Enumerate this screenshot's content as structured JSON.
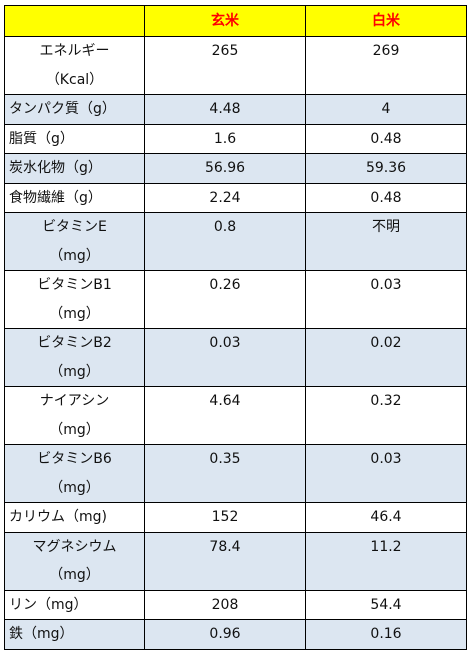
{
  "table": {
    "header": [
      "玄米",
      "白米"
    ],
    "rows": [
      [
        "エネルギー\n（Kcal）",
        "265",
        "269"
      ],
      [
        "タンパク質（g）",
        "4.48",
        "4"
      ],
      [
        "脂質（g）",
        "1.6",
        "0.48"
      ],
      [
        "炭水化物（g）",
        "56.96",
        "59.36"
      ],
      [
        "食物繊維（g）",
        "2.24",
        "0.48"
      ],
      [
        "ビタミンE\n（mg）",
        "0.8",
        "不明"
      ],
      [
        "ビタミンB1\n（mg）",
        "0.26",
        "0.03"
      ],
      [
        "ビタミンB2\n（mg）",
        "0.03",
        "0.02"
      ],
      [
        "ナイアシン\n（mg）",
        "4.64",
        "0.32"
      ],
      [
        "ビタミンB6\n（mg）",
        "0.35",
        "0.03"
      ],
      [
        "カリウム（mg)",
        "152",
        "46.4"
      ],
      [
        "マグネシウム\n（mg）",
        "78.4",
        "11.2"
      ],
      [
        "リン（mg）",
        "208",
        "54.4"
      ],
      [
        "鉄（mg）",
        "0.96",
        "0.16"
      ]
    ]
  }
}
